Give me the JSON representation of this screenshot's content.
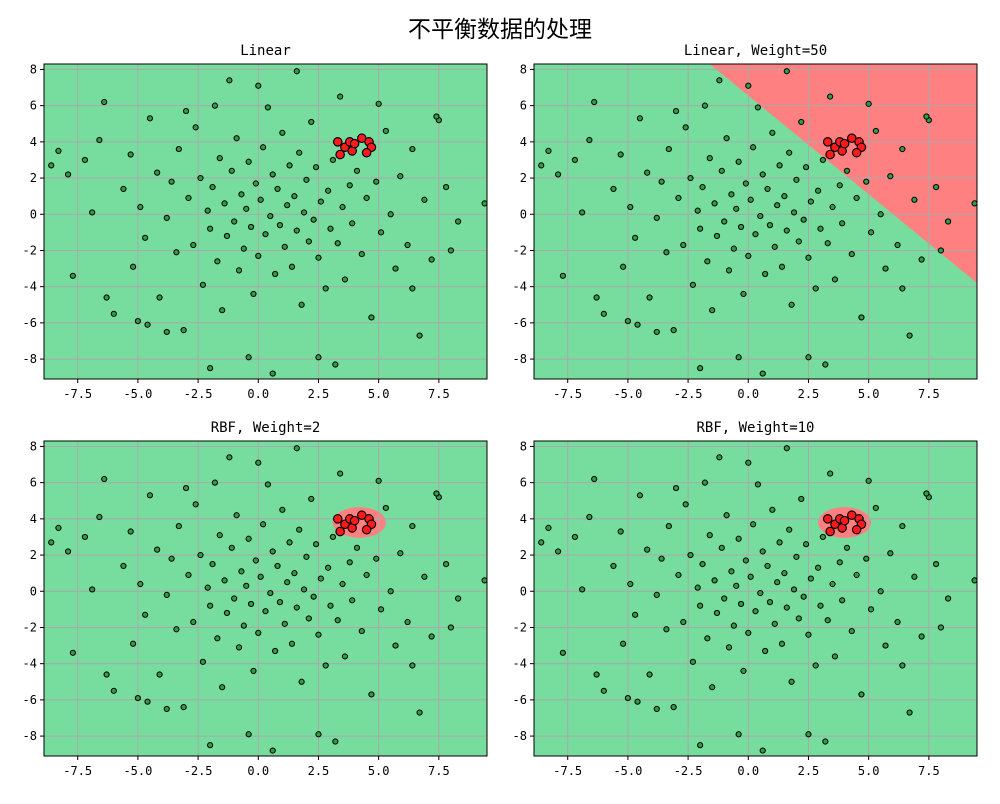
{
  "figure": {
    "suptitle": "不平衡数据的处理"
  },
  "colors": {
    "majority_region": "#77dd9f",
    "minority_region": "#ff8080",
    "majority_point": "#2e9e44",
    "minority_point": "#ff1a1a",
    "point_edge": "#000000",
    "grid": "#a9a9a9"
  },
  "chart_data": [
    {
      "type": "scatter",
      "title": "Linear",
      "xlim": [
        -8.9,
        9.5
      ],
      "ylim": [
        -9.1,
        8.3
      ],
      "xticks": [
        -7.5,
        -5.0,
        -2.5,
        0.0,
        2.5,
        5.0,
        7.5
      ],
      "xtick_labels": [
        "-7.5",
        "-5.0",
        "-2.5",
        "0.0",
        "2.5",
        "5.0",
        "7.5"
      ],
      "yticks": [
        -8,
        -6,
        -4,
        -2,
        0,
        2,
        4,
        6,
        8
      ],
      "ytick_labels": [
        "-8",
        "-6",
        "-4",
        "-2",
        "0",
        "2",
        "4",
        "6",
        "8"
      ],
      "grid": true,
      "boundary": {
        "kind": "none"
      }
    },
    {
      "type": "scatter",
      "title": "Linear, Weight=50",
      "xlim": [
        -8.9,
        9.5
      ],
      "ylim": [
        -9.1,
        8.3
      ],
      "xticks": [
        -7.5,
        -5.0,
        -2.5,
        0.0,
        2.5,
        5.0,
        7.5
      ],
      "xtick_labels": [
        "-7.5",
        "-5.0",
        "-2.5",
        "0.0",
        "2.5",
        "5.0",
        "7.5"
      ],
      "yticks": [
        -8,
        -6,
        -4,
        -2,
        0,
        2,
        4,
        6,
        8
      ],
      "ytick_labels": [
        "-8",
        "-6",
        "-4",
        "-2",
        "0",
        "2",
        "4",
        "6",
        "8"
      ],
      "grid": true,
      "boundary": {
        "kind": "line",
        "p1": [
          -1.6,
          8.3
        ],
        "p2": [
          9.5,
          -3.8
        ]
      }
    },
    {
      "type": "scatter",
      "title": "RBF, Weight=2",
      "xlim": [
        -8.9,
        9.5
      ],
      "ylim": [
        -9.1,
        8.3
      ],
      "xticks": [
        -7.5,
        -5.0,
        -2.5,
        0.0,
        2.5,
        5.0,
        7.5
      ],
      "xtick_labels": [
        "-7.5",
        "-5.0",
        "-2.5",
        "0.0",
        "2.5",
        "5.0",
        "7.5"
      ],
      "yticks": [
        -8,
        -6,
        -4,
        -2,
        0,
        2,
        4,
        6,
        8
      ],
      "ytick_labels": [
        "-8",
        "-6",
        "-4",
        "-2",
        "0",
        "2",
        "4",
        "6",
        "8"
      ],
      "grid": true,
      "boundary": {
        "kind": "ellipse",
        "center": [
          4.2,
          3.8
        ],
        "rx": 1.1,
        "ry": 0.85
      }
    },
    {
      "type": "scatter",
      "title": "RBF, Weight=10",
      "xlim": [
        -8.9,
        9.5
      ],
      "ylim": [
        -9.1,
        8.3
      ],
      "xticks": [
        -7.5,
        -5.0,
        -2.5,
        0.0,
        2.5,
        5.0,
        7.5
      ],
      "xtick_labels": [
        "-7.5",
        "-5.0",
        "-2.5",
        "0.0",
        "2.5",
        "5.0",
        "7.5"
      ],
      "yticks": [
        -8,
        -6,
        -4,
        -2,
        0,
        2,
        4,
        6,
        8
      ],
      "ytick_labels": [
        "-8",
        "-6",
        "-4",
        "-2",
        "0",
        "2",
        "4",
        "6",
        "8"
      ],
      "grid": true,
      "boundary": {
        "kind": "ellipse",
        "center": [
          4.0,
          3.8
        ],
        "rx": 1.1,
        "ry": 0.85
      }
    }
  ],
  "points": {
    "minority": [
      [
        3.3,
        4.0
      ],
      [
        3.6,
        3.7
      ],
      [
        3.4,
        3.3
      ],
      [
        3.9,
        3.5
      ],
      [
        3.8,
        4.0
      ],
      [
        4.3,
        4.2
      ],
      [
        4.6,
        4.0
      ],
      [
        4.7,
        3.7
      ],
      [
        4.0,
        3.9
      ],
      [
        4.5,
        3.4
      ]
    ],
    "majority": [
      [
        -8.6,
        2.7
      ],
      [
        -8.3,
        3.5
      ],
      [
        -7.9,
        2.2
      ],
      [
        -7.7,
        -3.4
      ],
      [
        -6.9,
        0.1
      ],
      [
        -6.6,
        4.1
      ],
      [
        -6.4,
        6.2
      ],
      [
        -6.0,
        -5.5
      ],
      [
        -5.6,
        1.4
      ],
      [
        -5.3,
        3.3
      ],
      [
        -5.2,
        -2.9
      ],
      [
        -4.9,
        0.4
      ],
      [
        -4.7,
        -1.3
      ],
      [
        -4.5,
        5.3
      ],
      [
        -4.2,
        2.3
      ],
      [
        -4.1,
        -4.6
      ],
      [
        -3.8,
        -0.2
      ],
      [
        -3.6,
        1.8
      ],
      [
        -3.4,
        -2.1
      ],
      [
        -3.3,
        3.6
      ],
      [
        -3.1,
        -6.4
      ],
      [
        -2.9,
        0.9
      ],
      [
        -2.7,
        -1.7
      ],
      [
        -2.6,
        4.8
      ],
      [
        -2.4,
        2.0
      ],
      [
        -2.3,
        -3.9
      ],
      [
        -2.1,
        0.2
      ],
      [
        -2.0,
        -0.8
      ],
      [
        -1.9,
        1.5
      ],
      [
        -1.7,
        -2.6
      ],
      [
        -1.6,
        3.1
      ],
      [
        -1.5,
        -5.3
      ],
      [
        -1.4,
        0.6
      ],
      [
        -1.3,
        -1.2
      ],
      [
        -1.1,
        2.4
      ],
      [
        -1.0,
        -0.4
      ],
      [
        -0.9,
        4.2
      ],
      [
        -0.8,
        -3.1
      ],
      [
        -0.7,
        1.1
      ],
      [
        -0.6,
        -1.9
      ],
      [
        -0.5,
        0.3
      ],
      [
        -0.4,
        2.9
      ],
      [
        -0.3,
        -0.7
      ],
      [
        -0.2,
        -4.4
      ],
      [
        -0.1,
        1.7
      ],
      [
        0.0,
        -2.3
      ],
      [
        0.1,
        0.8
      ],
      [
        0.2,
        3.7
      ],
      [
        0.3,
        -1.1
      ],
      [
        0.4,
        5.9
      ],
      [
        0.5,
        -0.1
      ],
      [
        0.6,
        2.2
      ],
      [
        0.7,
        -3.3
      ],
      [
        0.8,
        1.4
      ],
      [
        0.9,
        -0.6
      ],
      [
        1.0,
        4.5
      ],
      [
        1.1,
        -1.8
      ],
      [
        1.2,
        0.5
      ],
      [
        1.3,
        2.7
      ],
      [
        1.4,
        -2.9
      ],
      [
        1.5,
        1.0
      ],
      [
        1.6,
        -0.9
      ],
      [
        1.7,
        3.4
      ],
      [
        1.8,
        -5.0
      ],
      [
        1.9,
        0.1
      ],
      [
        2.0,
        1.9
      ],
      [
        2.1,
        -1.5
      ],
      [
        2.2,
        5.1
      ],
      [
        2.3,
        -0.3
      ],
      [
        2.4,
        2.6
      ],
      [
        2.5,
        -2.4
      ],
      [
        2.6,
        0.7
      ],
      [
        2.8,
        -4.1
      ],
      [
        2.9,
        1.3
      ],
      [
        3.0,
        -0.8
      ],
      [
        3.1,
        3.0
      ],
      [
        3.3,
        -1.6
      ],
      [
        3.4,
        6.5
      ],
      [
        3.5,
        0.4
      ],
      [
        3.6,
        -3.6
      ],
      [
        3.8,
        1.6
      ],
      [
        3.9,
        -0.5
      ],
      [
        4.1,
        2.4
      ],
      [
        4.3,
        -2.2
      ],
      [
        4.5,
        0.9
      ],
      [
        4.7,
        -5.7
      ],
      [
        4.9,
        1.8
      ],
      [
        5.1,
        -1.0
      ],
      [
        5.3,
        4.6
      ],
      [
        5.5,
        0.0
      ],
      [
        5.7,
        -3.0
      ],
      [
        5.9,
        2.1
      ],
      [
        6.2,
        -1.7
      ],
      [
        6.4,
        3.6
      ],
      [
        6.7,
        -6.7
      ],
      [
        6.9,
        0.8
      ],
      [
        7.2,
        -2.5
      ],
      [
        7.5,
        5.2
      ],
      [
        7.8,
        1.5
      ],
      [
        8.3,
        -0.4
      ],
      [
        9.4,
        0.6
      ],
      [
        -1.2,
        7.4
      ],
      [
        0.0,
        7.1
      ],
      [
        -0.4,
        -7.9
      ],
      [
        -2.0,
        -8.5
      ],
      [
        0.6,
        -8.8
      ],
      [
        2.5,
        -7.9
      ],
      [
        3.2,
        -8.3
      ],
      [
        -5.0,
        -5.9
      ],
      [
        5.0,
        6.1
      ],
      [
        -1.8,
        6.0
      ],
      [
        -3.0,
        5.7
      ],
      [
        1.6,
        7.9
      ],
      [
        -4.6,
        -6.1
      ],
      [
        7.4,
        5.4
      ],
      [
        8.0,
        -2.0
      ],
      [
        -6.3,
        -4.6
      ],
      [
        -7.2,
        3.0
      ],
      [
        6.4,
        -4.1
      ],
      [
        -3.8,
        -6.5
      ]
    ]
  }
}
